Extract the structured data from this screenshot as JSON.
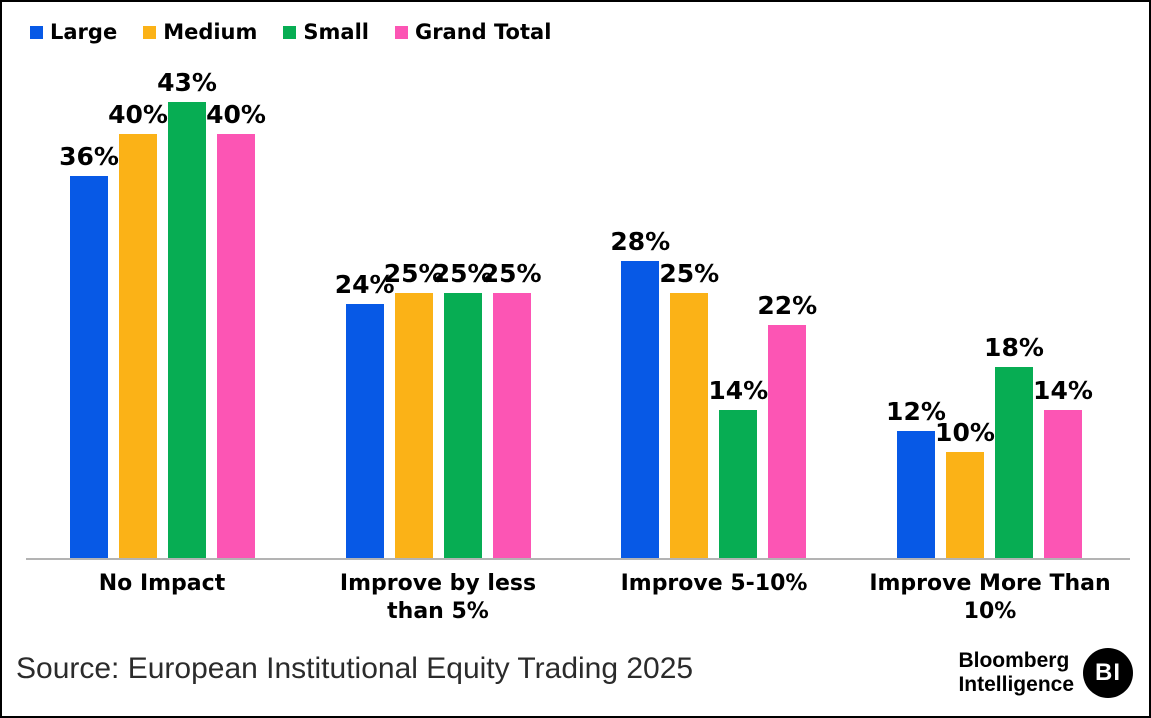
{
  "chart_data": {
    "type": "bar",
    "categories": [
      "No Impact",
      "Improve by less than 5%",
      "Improve 5-10%",
      "Improve More Than 10%"
    ],
    "series": [
      {
        "name": "Large",
        "color": "#0759E6",
        "values": [
          36,
          24,
          28,
          12
        ]
      },
      {
        "name": "Medium",
        "color": "#FBB217",
        "values": [
          40,
          25,
          25,
          10
        ]
      },
      {
        "name": "Small",
        "color": "#07AD53",
        "values": [
          43,
          25,
          14,
          18
        ]
      },
      {
        "name": "Grand Total",
        "color": "#FC55B4",
        "values": [
          40,
          25,
          22,
          14
        ]
      }
    ],
    "value_suffix": "%",
    "data_labels": true,
    "ylim": [
      0,
      46
    ],
    "grid": false,
    "legend_position": "top-left",
    "axis_color": "#b3b3b3",
    "title": "",
    "xlabel": "",
    "ylabel": ""
  },
  "footer": {
    "source": "Source: European Institutional Equity Trading 2025",
    "logo_line1": "Bloomberg",
    "logo_line2": "Intelligence",
    "logo_badge": "BI"
  }
}
